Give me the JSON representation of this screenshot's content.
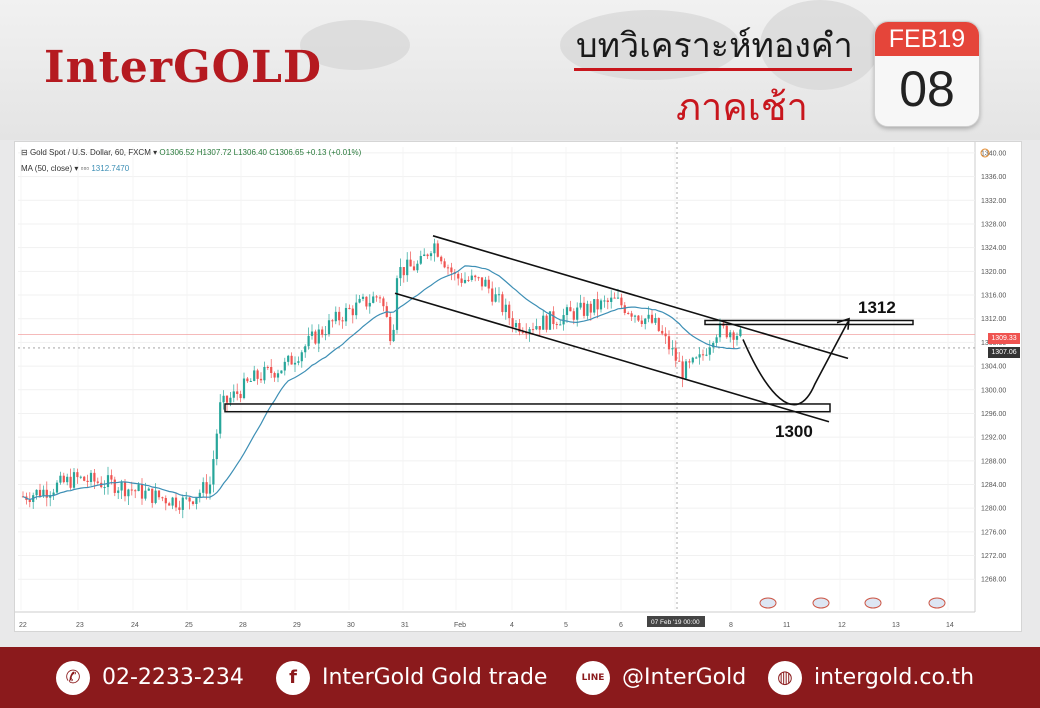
{
  "header": {
    "logo": "InterGOLD",
    "title": "บทวิเคราะห์ทองคำ",
    "subtitle": "ภาคเช้า",
    "calendar": {
      "month": "FEB19",
      "day": "08"
    }
  },
  "chart_header": {
    "symbol": "Gold Spot / U.S. Dollar, 60, FXCM",
    "ohlc": "O1306.52 H1307.72 L1306.40 C1306.65 +0.13 (+0.01%)",
    "ma_label": "MA (50, close)",
    "ma_value": "1312.7470"
  },
  "chart_data": {
    "type": "candlestick",
    "y_ticks": [
      "1340.00",
      "1336.00",
      "1332.00",
      "1328.00",
      "1324.00",
      "1320.00",
      "1316.00",
      "1312.00",
      "1308.00",
      "1304.00",
      "1300.00",
      "1296.00",
      "1292.00",
      "1288.00",
      "1284.00",
      "1280.00",
      "1276.00",
      "1272.00",
      "1268.00"
    ],
    "ylim": [
      1265,
      1341
    ],
    "x_ticks": [
      "22",
      "23",
      "24",
      "25",
      "28",
      "29",
      "30",
      "31",
      "Feb",
      "4",
      "5",
      "6",
      "7",
      "8",
      "11",
      "12",
      "13",
      "14"
    ],
    "crosshair_label": "07 Feb '19   00:00",
    "price_tags": {
      "last": "1309.33",
      "cursor": "1307.06"
    },
    "annotations": {
      "resistance": "1312",
      "support": "1300"
    },
    "colors": {
      "up": "#26a69a",
      "down": "#ef5350",
      "ma": "#3d8fb5",
      "line": "#111111"
    }
  },
  "footer": {
    "phone": "02-2233-234",
    "facebook": "InterGold Gold trade",
    "line": "@InterGold",
    "website": "intergold.co.th"
  }
}
